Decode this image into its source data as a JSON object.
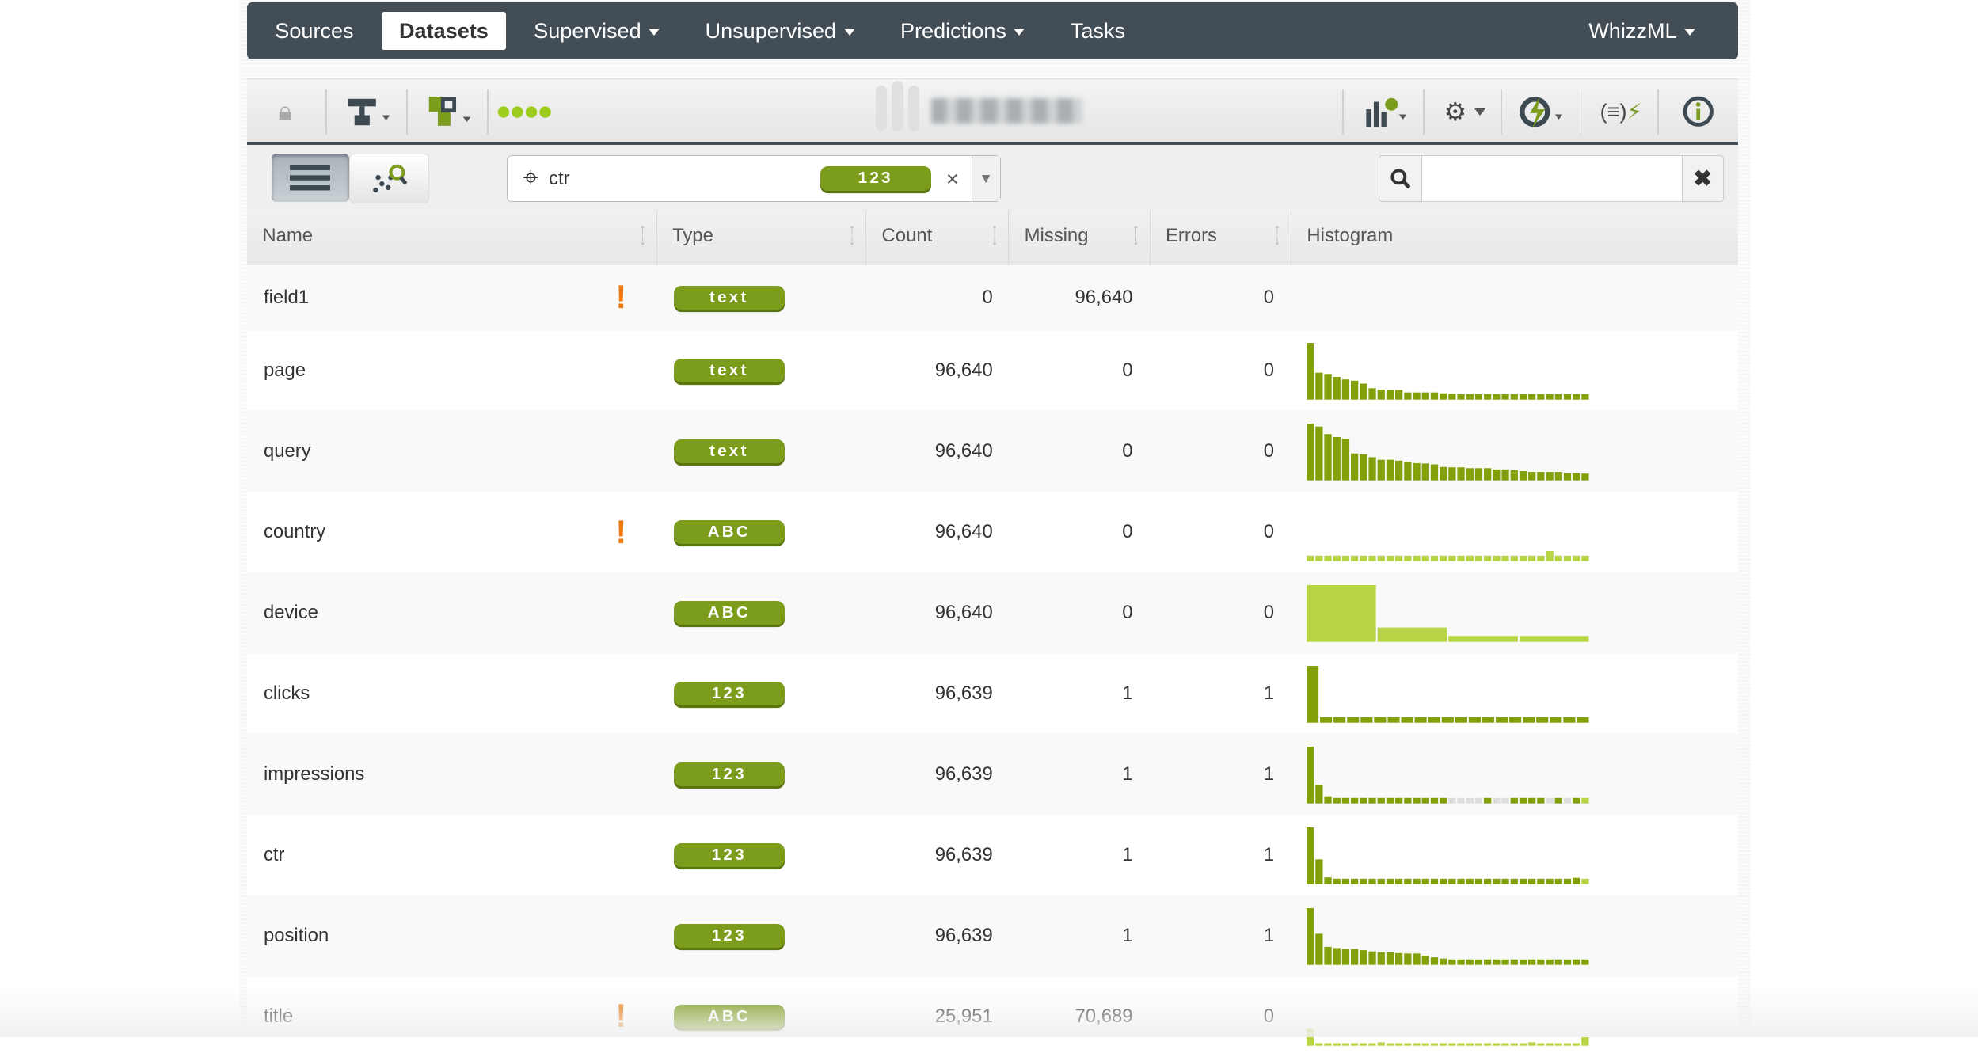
{
  "nav": {
    "items": [
      {
        "label": "Sources"
      },
      {
        "label": "Datasets",
        "active": true
      },
      {
        "label": "Supervised",
        "dropdown": true
      },
      {
        "label": "Unsupervised",
        "dropdown": true
      },
      {
        "label": "Predictions",
        "dropdown": true
      },
      {
        "label": "Tasks"
      }
    ],
    "right": "WhizzML"
  },
  "toolbar": {
    "icons_left": [
      "lock-icon",
      "model-tree-icon",
      "field-types-icon",
      "progress-dots-icon"
    ],
    "icons_right": [
      "chart-config-icon",
      "gear-icon",
      "lightning-cycle-icon",
      "formula-icon",
      "info-icon"
    ],
    "title_blurred": true
  },
  "filter": {
    "field": "ctr",
    "type_badge": "123",
    "clear": "×"
  },
  "search": {
    "value": "",
    "placeholder": ""
  },
  "colors": {
    "dark_green": "#82a00a",
    "light_green": "#b6d444",
    "empty": "#dddddd",
    "nav": "#424d55",
    "warning": "#f07a10"
  },
  "table": {
    "headers": [
      "Name",
      "Type",
      "Count",
      "Missing",
      "Errors",
      "Histogram"
    ],
    "rows": [
      {
        "name": "field1",
        "warn": true,
        "type": "text",
        "count": "0",
        "missing": "96,640",
        "errors": "0",
        "hist": []
      },
      {
        "name": "page",
        "warn": false,
        "type": "text",
        "count": "96,640",
        "missing": "0",
        "errors": "0",
        "color": "dark",
        "hist": [
          135,
          64,
          61,
          54,
          48,
          45,
          38,
          27,
          24,
          23,
          23,
          17,
          17,
          17,
          17,
          15,
          14,
          13,
          13,
          13,
          13,
          13,
          13,
          13,
          13,
          13,
          13,
          13,
          13,
          13,
          13,
          13
        ]
      },
      {
        "name": "query",
        "warn": false,
        "type": "text",
        "count": "96,640",
        "missing": "0",
        "errors": "0",
        "color": "dark",
        "hist": [
          135,
          128,
          110,
          103,
          99,
          64,
          62,
          55,
          49,
          49,
          47,
          44,
          41,
          40,
          38,
          32,
          31,
          31,
          29,
          29,
          29,
          26,
          26,
          24,
          22,
          20,
          20,
          20,
          20,
          17,
          17,
          16
        ]
      },
      {
        "name": "country",
        "warn": true,
        "type": "ABC",
        "count": "96,640",
        "missing": "0",
        "errors": "0",
        "color": "light",
        "hist": [
          13,
          13,
          13,
          13,
          13,
          13,
          13,
          13,
          13,
          13,
          13,
          13,
          13,
          13,
          13,
          13,
          13,
          13,
          13,
          13,
          13,
          13,
          13,
          13,
          13,
          13,
          13,
          24,
          13,
          13,
          13,
          13
        ]
      },
      {
        "name": "device",
        "warn": false,
        "type": "ABC",
        "count": "96,640",
        "missing": "0",
        "errors": "0",
        "color": "light",
        "hist": [
          135,
          34,
          14,
          14
        ]
      },
      {
        "name": "clicks",
        "warn": false,
        "type": "123",
        "count": "96,639",
        "missing": "1",
        "errors": "1",
        "color": "dark",
        "hist": [
          135,
          13,
          13,
          13,
          13,
          13,
          13,
          13,
          13,
          13,
          13,
          13,
          13,
          13,
          13,
          13,
          13,
          13,
          13,
          13,
          13
        ]
      },
      {
        "name": "impressions",
        "warn": false,
        "type": "123",
        "count": "96,639",
        "missing": "1",
        "errors": "1",
        "color": "dark",
        "hist": [
          135,
          44,
          17,
          13,
          13,
          13,
          13,
          13,
          13,
          13,
          13,
          13,
          13,
          13,
          13,
          13,
          13,
          13,
          13,
          13,
          13,
          13,
          13,
          13,
          13,
          13,
          13,
          13,
          13,
          13,
          13,
          13
        ],
        "empty": [
          16,
          17,
          18,
          19,
          21,
          22,
          27,
          29
        ],
        "light_last": true
      },
      {
        "name": "ctr",
        "warn": false,
        "type": "123",
        "count": "96,639",
        "missing": "1",
        "errors": "1",
        "color": "dark",
        "hist": [
          135,
          59,
          16,
          13,
          13,
          13,
          13,
          13,
          13,
          13,
          13,
          13,
          13,
          13,
          13,
          13,
          13,
          13,
          13,
          13,
          13,
          13,
          13,
          13,
          13,
          13,
          13,
          13,
          13,
          13,
          15,
          13
        ],
        "light_last": true
      },
      {
        "name": "position",
        "warn": false,
        "type": "123",
        "count": "96,639",
        "missing": "1",
        "errors": "1",
        "color": "dark",
        "hist": [
          135,
          74,
          43,
          40,
          38,
          38,
          35,
          32,
          30,
          30,
          28,
          27,
          27,
          22,
          18,
          15,
          13,
          13,
          13,
          13,
          13,
          13,
          13,
          13,
          13,
          13,
          13,
          13,
          13,
          13,
          13,
          13
        ]
      },
      {
        "name": "title",
        "warn": true,
        "type": "ABC",
        "count": "25,951",
        "missing": "70,689",
        "errors": "0",
        "color": "light",
        "hist": [
          40,
          5,
          5,
          5,
          5,
          5,
          5,
          5,
          8,
          5,
          5,
          5,
          5,
          5,
          5,
          5,
          5,
          5,
          5,
          5,
          5,
          5,
          5,
          5,
          5,
          8,
          5,
          5,
          5,
          5,
          5,
          20
        ]
      }
    ]
  }
}
